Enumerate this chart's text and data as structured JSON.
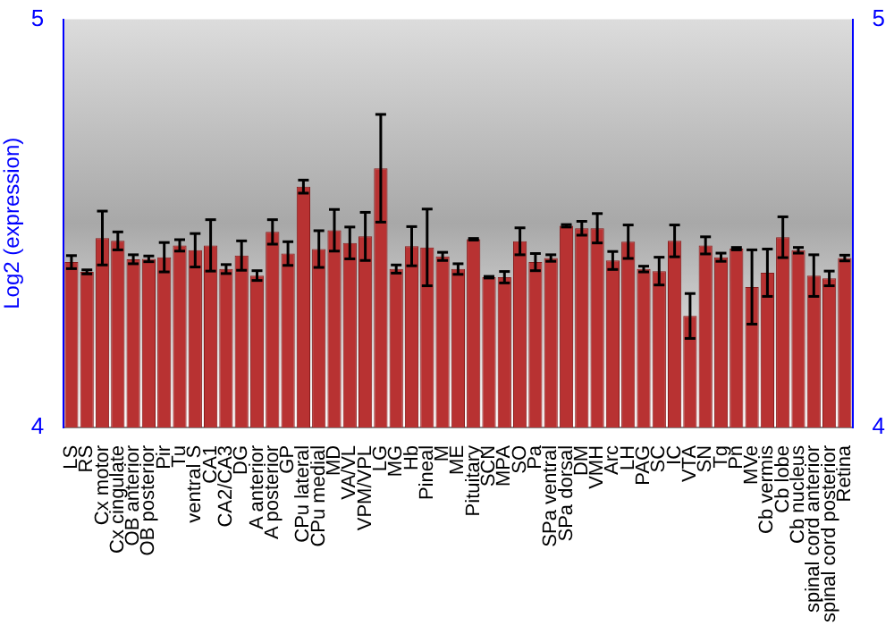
{
  "chart_data": {
    "type": "bar",
    "ylabel": "Log2 (expression)",
    "categories": [
      "LS",
      "RS",
      "Cx motor",
      "Cx cingulate",
      "OB anterior",
      "OB posterior",
      "Pir",
      "Tu",
      "ventral S",
      "CA1",
      "CA2/CA3",
      "DG",
      "A anterior",
      "A posterior",
      "GP",
      "CPu lateral",
      "CPu medial",
      "MD",
      "VA/VL",
      "VPM/VPL",
      "LG",
      "MG",
      "Hb",
      "Pineal",
      "M",
      "ME",
      "Pituitary",
      "SCN",
      "MPA",
      "SO",
      "Pa",
      "SPa ventral",
      "SPa dorsal",
      "DM",
      "VMH",
      "Arc",
      "LH",
      "PAG",
      "SC",
      "IC",
      "VTA",
      "SN",
      "Tg",
      "Pn",
      "MVe",
      "Cb vermis",
      "Cb lobe",
      "Cb nucleus",
      "spinal cord anterior",
      "spinal cord posterior",
      "Retina"
    ],
    "values": [
      4.405,
      4.381,
      4.464,
      4.457,
      4.412,
      4.413,
      4.417,
      4.446,
      4.434,
      4.446,
      4.388,
      4.421,
      4.372,
      4.479,
      4.426,
      4.59,
      4.437,
      4.483,
      4.452,
      4.468,
      4.635,
      4.388,
      4.444,
      4.441,
      4.419,
      4.388,
      4.461,
      4.368,
      4.368,
      4.456,
      4.405,
      4.415,
      4.494,
      4.488,
      4.488,
      4.409,
      4.455,
      4.388,
      4.383,
      4.457,
      4.273,
      4.446,
      4.417,
      4.438,
      4.344,
      4.379,
      4.466,
      4.434,
      4.372,
      4.365,
      4.415
    ],
    "errors": [
      0.016,
      0.005,
      0.066,
      0.022,
      0.011,
      0.007,
      0.036,
      0.014,
      0.041,
      0.063,
      0.011,
      0.036,
      0.012,
      0.03,
      0.029,
      0.016,
      0.045,
      0.051,
      0.039,
      0.059,
      0.132,
      0.01,
      0.048,
      0.094,
      0.01,
      0.013,
      0.002,
      0.002,
      0.014,
      0.033,
      0.021,
      0.008,
      0.003,
      0.017,
      0.036,
      0.022,
      0.041,
      0.007,
      0.034,
      0.039,
      0.055,
      0.021,
      0.01,
      0.003,
      0.091,
      0.058,
      0.05,
      0.007,
      0.051,
      0.018,
      0.007
    ],
    "color": "#b83232",
    "ylim": [
      4,
      5
    ],
    "yticks": [
      4,
      5
    ],
    "y2lim": [
      4,
      5
    ],
    "y2ticks": [
      4,
      5
    ],
    "grid": false,
    "legend": false
  }
}
